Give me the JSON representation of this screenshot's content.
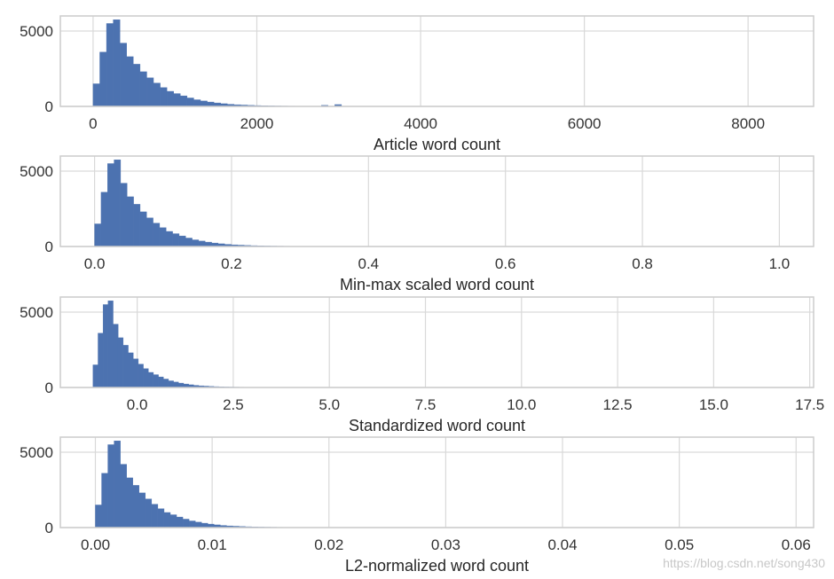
{
  "chart_data": [
    {
      "type": "bar",
      "variant": "histogram",
      "xlabel": "Article word count",
      "xlim": [
        -400,
        8800
      ],
      "ylim": [
        0,
        6000
      ],
      "xticks": [
        0,
        2000,
        4000,
        6000,
        8000
      ],
      "xtick_labels": [
        "0",
        "2000",
        "4000",
        "6000",
        "8000"
      ],
      "yticks": [
        0,
        5000
      ],
      "ytick_labels": [
        "0",
        "5000"
      ],
      "grid": true,
      "bin_start": 0,
      "bin_width": 82,
      "values": [
        1500,
        3600,
        5500,
        5750,
        4200,
        3300,
        2800,
        2300,
        1900,
        1550,
        1250,
        1000,
        850,
        700,
        560,
        440,
        360,
        290,
        230,
        180,
        140,
        110,
        90,
        70,
        55,
        45,
        35,
        30,
        25,
        20,
        15,
        12,
        10,
        8,
        70,
        5,
        120,
        4,
        3,
        2
      ]
    },
    {
      "type": "bar",
      "variant": "histogram",
      "xlabel": "Min-max scaled word count",
      "xlim": [
        -0.05,
        1.05
      ],
      "ylim": [
        0,
        6000
      ],
      "xticks": [
        0.0,
        0.2,
        0.4,
        0.6,
        0.8,
        1.0
      ],
      "xtick_labels": [
        "0.0",
        "0.2",
        "0.4",
        "0.6",
        "0.8",
        "1.0"
      ],
      "yticks": [
        0,
        5000
      ],
      "ytick_labels": [
        "0",
        "5000"
      ],
      "grid": true,
      "bin_start": 0,
      "bin_width": 0.0095,
      "values": [
        1500,
        3600,
        5500,
        5750,
        4200,
        3300,
        2800,
        2300,
        1900,
        1550,
        1250,
        1000,
        850,
        700,
        560,
        440,
        360,
        290,
        230,
        180,
        140,
        110,
        90,
        70,
        55,
        45,
        35,
        30,
        25,
        20,
        15,
        12,
        10,
        8,
        6,
        5,
        4,
        3,
        2,
        2
      ]
    },
    {
      "type": "bar",
      "variant": "histogram",
      "xlabel": "Standardized word count",
      "xlim": [
        -2.0,
        17.6
      ],
      "ylim": [
        0,
        6000
      ],
      "xticks": [
        0.0,
        2.5,
        5.0,
        7.5,
        10.0,
        12.5,
        15.0,
        17.5
      ],
      "xtick_labels": [
        "0.0",
        "2.5",
        "5.0",
        "7.5",
        "10.0",
        "12.5",
        "15.0",
        "17.5"
      ],
      "yticks": [
        0,
        5000
      ],
      "ytick_labels": [
        "0",
        "5000"
      ],
      "grid": true,
      "bin_start": -1.15,
      "bin_width": 0.131,
      "values": [
        1500,
        3600,
        5500,
        5750,
        4200,
        3300,
        2800,
        2300,
        1900,
        1550,
        1250,
        1000,
        850,
        700,
        560,
        440,
        360,
        290,
        230,
        180,
        140,
        110,
        90,
        70,
        55,
        45,
        35,
        30,
        25,
        20,
        15,
        12,
        10,
        8,
        6,
        5,
        4,
        3,
        2,
        2
      ]
    },
    {
      "type": "bar",
      "variant": "histogram",
      "xlabel": "L2-normalized word count",
      "xlim": [
        -0.003,
        0.0615
      ],
      "ylim": [
        0,
        6000
      ],
      "xticks": [
        0.0,
        0.01,
        0.02,
        0.03,
        0.04,
        0.05,
        0.06
      ],
      "xtick_labels": [
        "0.00",
        "0.01",
        "0.02",
        "0.03",
        "0.04",
        "0.05",
        "0.06"
      ],
      "yticks": [
        0,
        5000
      ],
      "ytick_labels": [
        "0",
        "5000"
      ],
      "grid": true,
      "bin_start": 0,
      "bin_width": 0.000535,
      "values": [
        1500,
        3600,
        5500,
        5750,
        4200,
        3300,
        2800,
        2300,
        1900,
        1550,
        1250,
        1000,
        850,
        700,
        560,
        440,
        360,
        290,
        230,
        180,
        140,
        110,
        90,
        70,
        55,
        45,
        35,
        30,
        25,
        20,
        15,
        12,
        10,
        8,
        6,
        5,
        4,
        3,
        2,
        2
      ]
    }
  ],
  "colors": {
    "bar": "#4c72b0",
    "grid": "#d9d9d9",
    "spine": "#cccccc"
  },
  "watermark": "https://blog.csdn.net/song430"
}
